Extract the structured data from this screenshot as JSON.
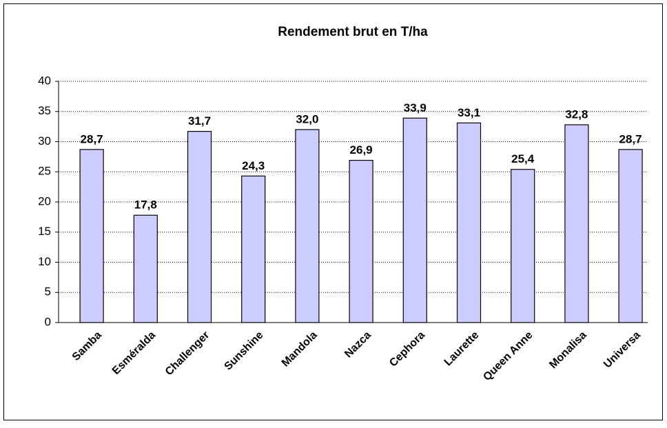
{
  "chart_data": {
    "type": "bar",
    "title": "Rendement brut en T/ha",
    "categories": [
      "Samba",
      "Esméralda",
      "Challenger",
      "Sunshine",
      "Mandola",
      "Nazca",
      "Cephora",
      "Laurette",
      "Queen Anne",
      "Monalisa",
      "Universa"
    ],
    "values": [
      28.7,
      17.8,
      31.7,
      24.3,
      32.0,
      26.9,
      33.9,
      33.1,
      25.4,
      32.8,
      28.7
    ],
    "value_labels": [
      "28,7",
      "17,8",
      "31,7",
      "24,3",
      "32,0",
      "26,9",
      "33,9",
      "33,1",
      "25,4",
      "32,8",
      "28,7"
    ],
    "color": "#ccccff",
    "ylim": [
      0,
      40
    ],
    "yticks": [
      0,
      5,
      10,
      15,
      20,
      25,
      30,
      35,
      40
    ],
    "grid": true
  }
}
